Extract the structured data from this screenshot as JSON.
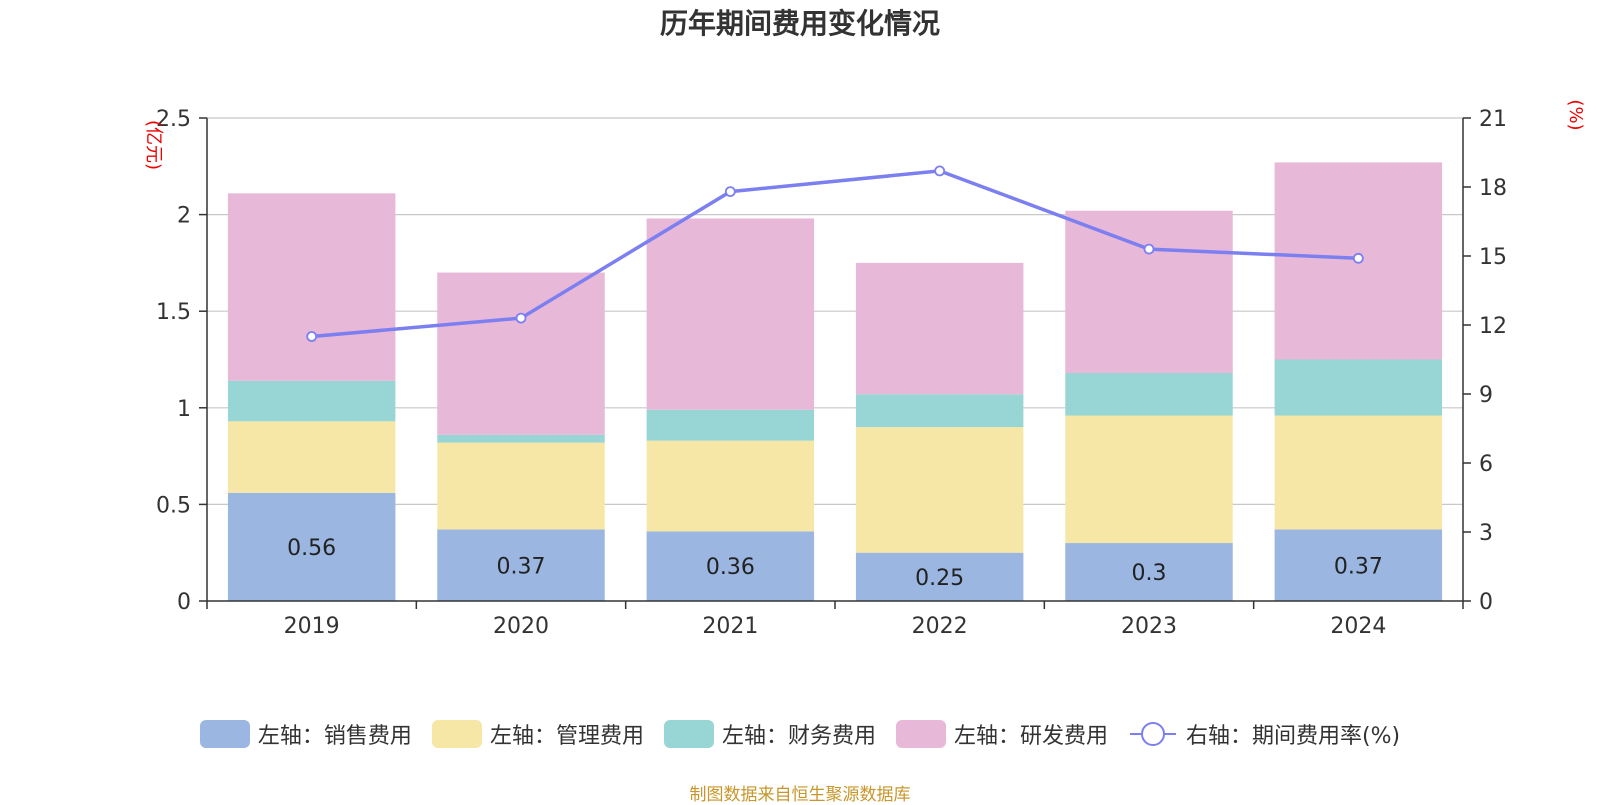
{
  "title": "历年期间费用变化情况",
  "source": "制图数据来自恒生聚源数据库",
  "chart_data": {
    "type": "bar",
    "stacked": true,
    "categories": [
      "2019",
      "2020",
      "2021",
      "2022",
      "2023",
      "2024"
    ],
    "left_axis": {
      "unit_label": "(亿元)",
      "ylim": [
        0,
        2.5
      ],
      "ticks": [
        "0",
        "0.5",
        "1",
        "1.5",
        "2",
        "2.5"
      ],
      "tick_values": [
        0,
        0.5,
        1,
        1.5,
        2,
        2.5
      ]
    },
    "right_axis": {
      "unit_label": "(%)",
      "ylim": [
        0,
        21
      ],
      "ticks": [
        "0",
        "3",
        "6",
        "9",
        "12",
        "15",
        "18",
        "21"
      ],
      "tick_values": [
        0,
        3,
        6,
        9,
        12,
        15,
        18,
        21
      ]
    },
    "series": [
      {
        "name": "左轴：销售费用",
        "axis": "left",
        "color": "#9bb7e1",
        "values": [
          0.56,
          0.37,
          0.36,
          0.25,
          0.3,
          0.37
        ],
        "labels": [
          "0.56",
          "0.37",
          "0.36",
          "0.25",
          "0.3",
          "0.37"
        ]
      },
      {
        "name": "左轴：管理费用",
        "axis": "left",
        "color": "#f7e7a6",
        "values": [
          0.37,
          0.45,
          0.47,
          0.65,
          0.66,
          0.59
        ]
      },
      {
        "name": "左轴：财务费用",
        "axis": "left",
        "color": "#98d5d5",
        "values": [
          0.21,
          0.04,
          0.16,
          0.17,
          0.22,
          0.29
        ]
      },
      {
        "name": "左轴：研发费用",
        "axis": "left",
        "color": "#e8b8d8",
        "values": [
          0.97,
          0.84,
          0.99,
          0.68,
          0.84,
          1.02
        ]
      },
      {
        "name": "右轴：期间费用率(%)",
        "axis": "right",
        "type": "line",
        "color": "#7b7ff0",
        "values": [
          11.5,
          12.3,
          17.8,
          18.7,
          15.3,
          14.9
        ]
      }
    ]
  }
}
